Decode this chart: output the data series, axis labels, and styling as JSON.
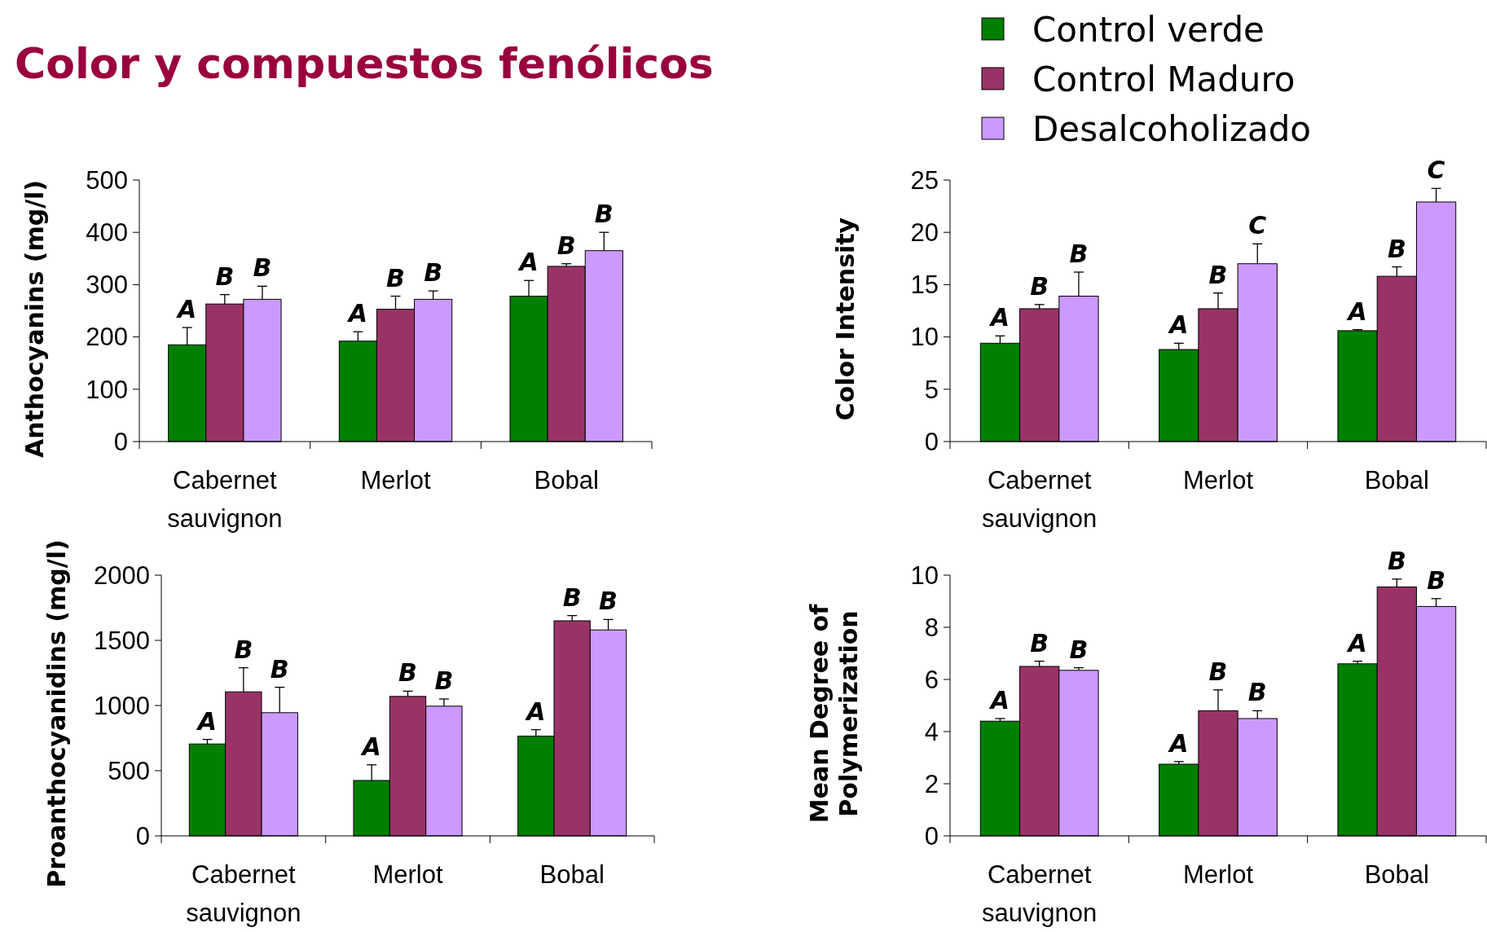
{
  "chart_data": [
    {
      "type": "bar",
      "title": "Color y compuestos fenólicos",
      "ylabel": "Anthocyanins (mg/l)",
      "categories": [
        "Cabernet sauvignon",
        "Merlot",
        "Bobal"
      ],
      "ylim": [
        0,
        500
      ],
      "yticks": [
        0,
        100,
        200,
        300,
        400,
        500
      ],
      "legend": false,
      "series": [
        {
          "color": "#007f00",
          "values": [
            185,
            192,
            278
          ],
          "errors": [
            [
              185,
              218
            ],
            [
              192,
              210
            ],
            [
              278,
              308
            ]
          ],
          "value_labels": [
            "A",
            "A",
            "A"
          ]
        },
        {
          "color": "#993366",
          "values": [
            263,
            253,
            335
          ],
          "errors": [
            [
              263,
              281
            ],
            [
              253,
              278
            ],
            [
              335,
              340
            ]
          ],
          "value_labels": [
            "B",
            "B",
            "B"
          ]
        },
        {
          "color": "#cc99ff",
          "values": [
            272,
            272,
            365
          ],
          "errors": [
            [
              272,
              297
            ],
            [
              272,
              288
            ],
            [
              365,
              400
            ]
          ],
          "value_labels": [
            "B",
            "B",
            "B"
          ]
        }
      ]
    },
    {
      "type": "bar",
      "ylabel": "Color Intensity",
      "categories": [
        "Cabernet sauvignon",
        "Merlot",
        "Bobal"
      ],
      "ylim": [
        0,
        25
      ],
      "yticks": [
        0,
        5,
        10,
        15,
        20,
        25
      ],
      "legend": "top",
      "series": [
        {
          "name": "Control verde",
          "color": "#007f00",
          "values": [
            9.4,
            8.8,
            10.6
          ],
          "errors": [
            [
              9.4,
              10.1
            ],
            [
              8.8,
              9.4
            ],
            [
              10.6,
              10.7
            ]
          ],
          "value_labels": [
            "A",
            "A",
            "A"
          ]
        },
        {
          "name": "Control Maduro",
          "color": "#993366",
          "values": [
            12.7,
            12.7,
            15.8
          ],
          "errors": [
            [
              12.7,
              13.1
            ],
            [
              12.7,
              14.2
            ],
            [
              15.8,
              16.7
            ]
          ],
          "value_labels": [
            "B",
            "B",
            "B"
          ]
        },
        {
          "name": "Desalcoholizado",
          "color": "#cc99ff",
          "values": [
            13.9,
            17,
            22.9
          ],
          "errors": [
            [
              13.9,
              16.2
            ],
            [
              17,
              18.9
            ],
            [
              22.9,
              24.2
            ]
          ],
          "value_labels": [
            "B",
            "C",
            "C"
          ]
        }
      ]
    },
    {
      "type": "bar",
      "ylabel": "Proanthocyanidins (mg/l)",
      "categories": [
        "Cabernet sauvignon",
        "Merlot",
        "Bobal"
      ],
      "ylim": [
        0,
        2000
      ],
      "yticks": [
        0,
        500,
        1000,
        1500,
        2000
      ],
      "legend": false,
      "series": [
        {
          "color": "#007f00",
          "values": [
            705,
            425,
            765
          ],
          "errors": [
            [
              705,
              740
            ],
            [
              425,
              545
            ],
            [
              765,
              815
            ]
          ],
          "value_labels": [
            "A",
            "A",
            "A"
          ]
        },
        {
          "color": "#993366",
          "values": [
            1105,
            1070,
            1650
          ],
          "errors": [
            [
              1105,
              1290
            ],
            [
              1070,
              1110
            ],
            [
              1650,
              1690
            ]
          ],
          "value_labels": [
            "B",
            "B",
            "B"
          ]
        },
        {
          "color": "#cc99ff",
          "values": [
            945,
            995,
            1580
          ],
          "errors": [
            [
              945,
              1140
            ],
            [
              995,
              1050
            ],
            [
              1580,
              1660
            ]
          ],
          "value_labels": [
            "B",
            "B",
            "B"
          ]
        }
      ]
    },
    {
      "type": "bar",
      "ylabel": "Mean Degree of Polymerization",
      "categories": [
        "Cabernet sauvignon",
        "Merlot",
        "Bobal"
      ],
      "ylim": [
        0,
        10
      ],
      "yticks": [
        0,
        2,
        4,
        6,
        8,
        10
      ],
      "legend": false,
      "series": [
        {
          "color": "#007f00",
          "values": [
            4.4,
            2.75,
            6.6
          ],
          "errors": [
            [
              4.4,
              4.5
            ],
            [
              2.75,
              2.85
            ],
            [
              6.6,
              6.7
            ]
          ],
          "value_labels": [
            "A",
            "A",
            "A"
          ]
        },
        {
          "color": "#993366",
          "values": [
            6.5,
            4.8,
            9.55
          ],
          "errors": [
            [
              6.5,
              6.7
            ],
            [
              4.8,
              5.6
            ],
            [
              9.55,
              9.85
            ]
          ],
          "value_labels": [
            "B",
            "B",
            "B"
          ]
        },
        {
          "color": "#cc99ff",
          "values": [
            6.35,
            4.5,
            8.8
          ],
          "errors": [
            [
              6.35,
              6.45
            ],
            [
              4.5,
              4.8
            ],
            [
              8.8,
              9.1
            ]
          ],
          "value_labels": [
            "B",
            "B",
            "B"
          ]
        }
      ]
    }
  ]
}
